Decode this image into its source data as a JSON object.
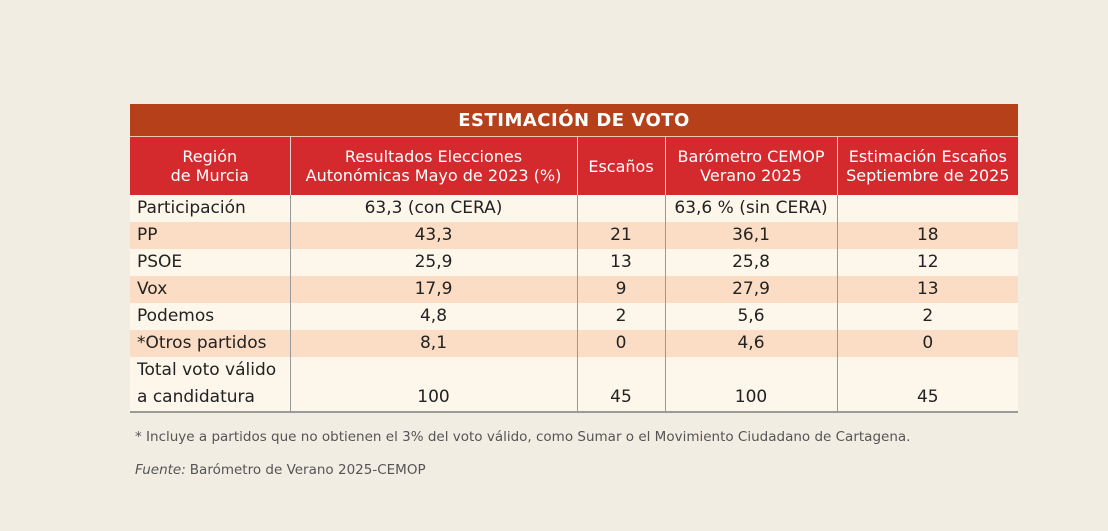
{
  "header": {
    "title": "ESTIMACIÓN DE VOTO"
  },
  "table": {
    "columns": [
      "Región\nde Murcia",
      "Resultados Elecciones\nAutonómicas Mayo de 2023 (%)",
      "Escaños",
      "Barómetro CEMOP\nVerano 2025",
      "Estimación Escaños\nSeptiembre de 2025"
    ],
    "rows": [
      [
        "Participación",
        "63,3 (con CERA)",
        null,
        "63,6 % (sin CERA)",
        null
      ],
      [
        "PP",
        "43,3",
        "21",
        "36,1",
        "18"
      ],
      [
        "PSOE",
        "25,9",
        "13",
        "25,8",
        "12"
      ],
      [
        "Vox",
        "17,9",
        "9",
        "27,9",
        "13"
      ],
      [
        "Podemos",
        "4,8",
        "2",
        "5,6",
        "2"
      ],
      [
        "*Otros partidos",
        "8,1",
        "0",
        "4,6",
        "0"
      ],
      [
        "Total voto válido\na candidatura",
        "100",
        "45",
        "100",
        "45"
      ]
    ]
  },
  "footnote": "* Incluye a partidos que no obtienen el 3% del voto válido, como Sumar o el Movimiento Ciudadano de Cartagena.",
  "source": {
    "label": "Fuente:",
    "text": "Barómetro de Verano 2025-CEMOP"
  }
}
